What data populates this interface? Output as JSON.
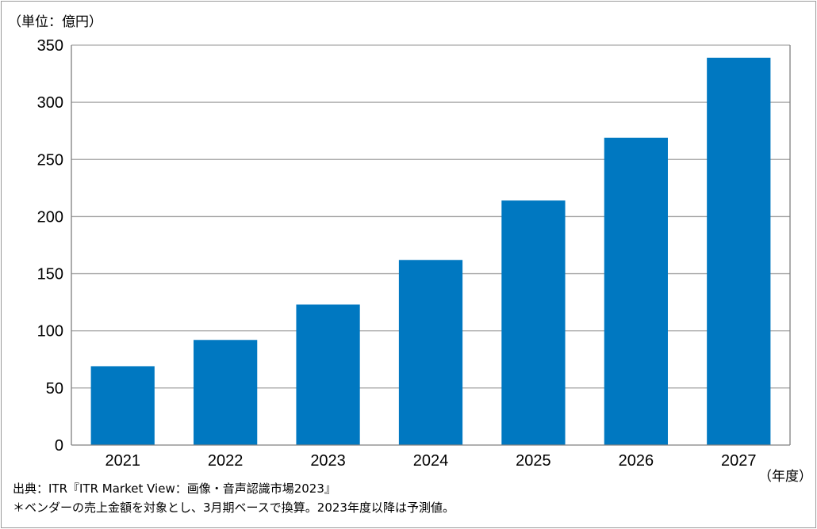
{
  "chart_data": {
    "type": "bar",
    "unit_label": "（単位：億円）",
    "xlabel": "（年度）",
    "categories": [
      "2021",
      "2022",
      "2023",
      "2024",
      "2025",
      "2026",
      "2027"
    ],
    "values": [
      69,
      92,
      123,
      162,
      214,
      269,
      339
    ],
    "ylim": [
      0,
      350
    ],
    "yticks": [
      0,
      50,
      100,
      150,
      200,
      250,
      300,
      350
    ],
    "grid": true,
    "bar_color": "#0078c1",
    "grid_color": "#a6a6a6"
  },
  "notes": {
    "source": "出典：ITR『ITR Market View：画像・音声認識市場2023』",
    "footnote": "＊ベンダーの売上金額を対象とし、3月期ベースで換算。2023年度以降は予測値。"
  }
}
